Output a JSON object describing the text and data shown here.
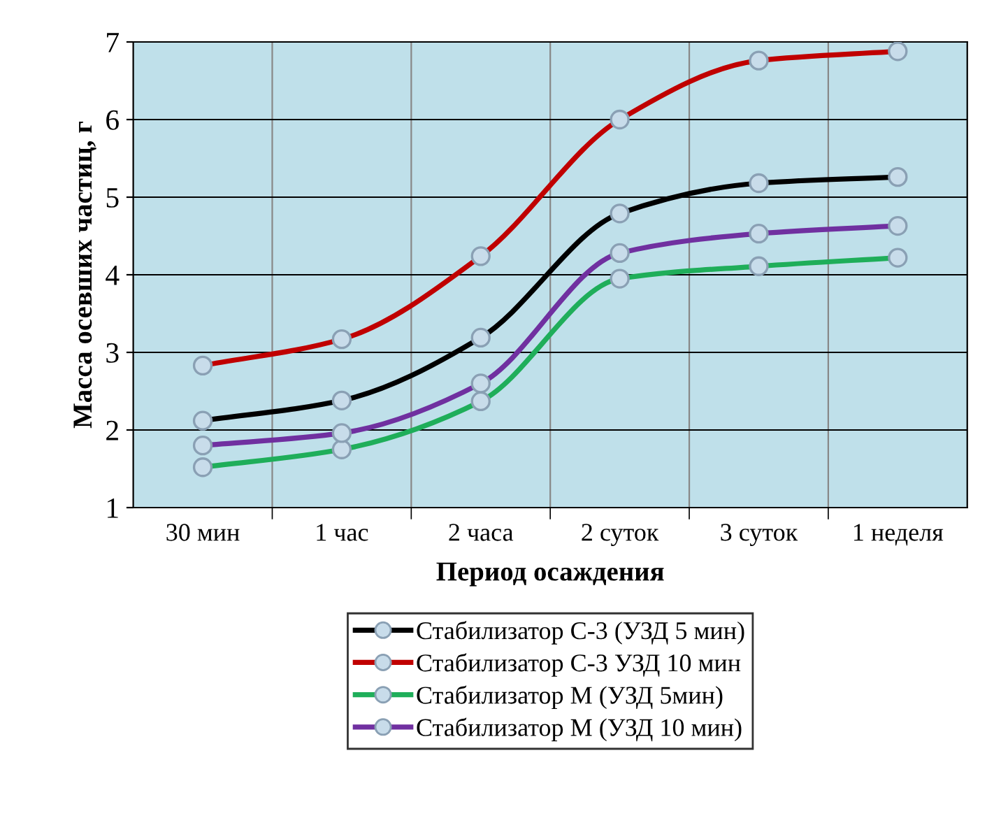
{
  "chart_data": {
    "type": "line",
    "xlabel": "Период осаждения",
    "ylabel": "Масса осевших частиц, г",
    "categories": [
      "30 мин",
      "1 час",
      "2 часа",
      "2 суток",
      "3 суток",
      "1 неделя"
    ],
    "series": [
      {
        "name": "Стабилизатор С-3 (УЗД 5 мин)",
        "color": "#000000",
        "values": [
          2.12,
          2.38,
          3.19,
          4.79,
          5.18,
          5.26
        ]
      },
      {
        "name": "Стабилизатор С-3 УЗД 10 мин",
        "color": "#c00000",
        "values": [
          2.83,
          3.17,
          4.24,
          6.0,
          6.76,
          6.88
        ]
      },
      {
        "name": "Стабилизатор М (УЗД 5мин)",
        "color": "#1fae5a",
        "values": [
          1.52,
          1.75,
          2.37,
          3.95,
          4.11,
          4.22
        ]
      },
      {
        "name": "Стабилизатор М (УЗД 10 мин)",
        "color": "#7030a0",
        "values": [
          1.8,
          1.96,
          2.6,
          4.28,
          4.53,
          4.63
        ]
      }
    ],
    "ylim": [
      1,
      7
    ],
    "yticks": [
      1,
      2,
      3,
      4,
      5,
      6,
      7
    ],
    "grid": true,
    "legend": "bottom",
    "marker": "circle",
    "line_style": "solid"
  }
}
